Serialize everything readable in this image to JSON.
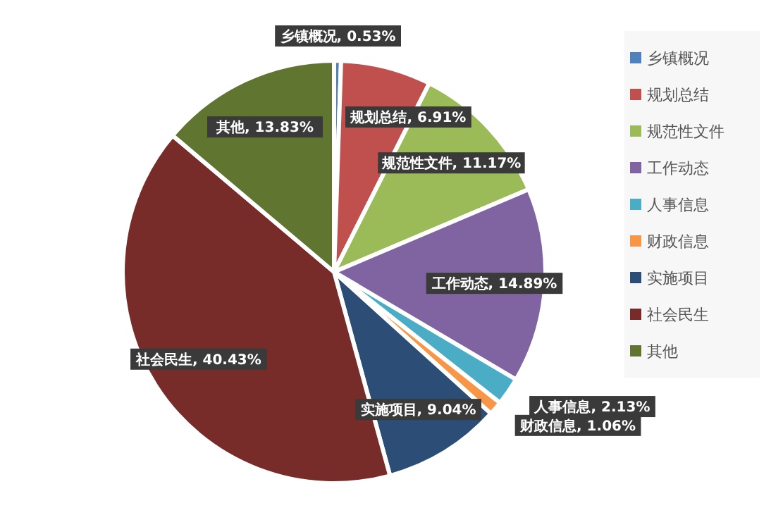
{
  "chart_data": {
    "type": "pie",
    "categories": [
      "乡镇概况",
      "规划总结",
      "规范性文件",
      "工作动态",
      "人事信息",
      "财政信息",
      "实施项目",
      "社会民生",
      "其他"
    ],
    "values": [
      0.53,
      6.91,
      11.17,
      14.89,
      2.13,
      1.06,
      9.04,
      40.43,
      13.83
    ],
    "colors": [
      "#4f81bd",
      "#c0504d",
      "#9bbb59",
      "#8064a2",
      "#4bacc6",
      "#f79646",
      "#2c4d75",
      "#772c2a",
      "#5f7530"
    ],
    "value_labels": [
      "乡镇概况, 0.53%",
      "规划总结, 6.91%",
      "规范性文件, 11.17%",
      "工作动态, 14.89%",
      "人事信息, 2.13%",
      "财政信息, 1.06%",
      "实施项目, 9.04%",
      "社会民生, 40.43%",
      "其他, 13.83%"
    ],
    "legend": "right"
  }
}
